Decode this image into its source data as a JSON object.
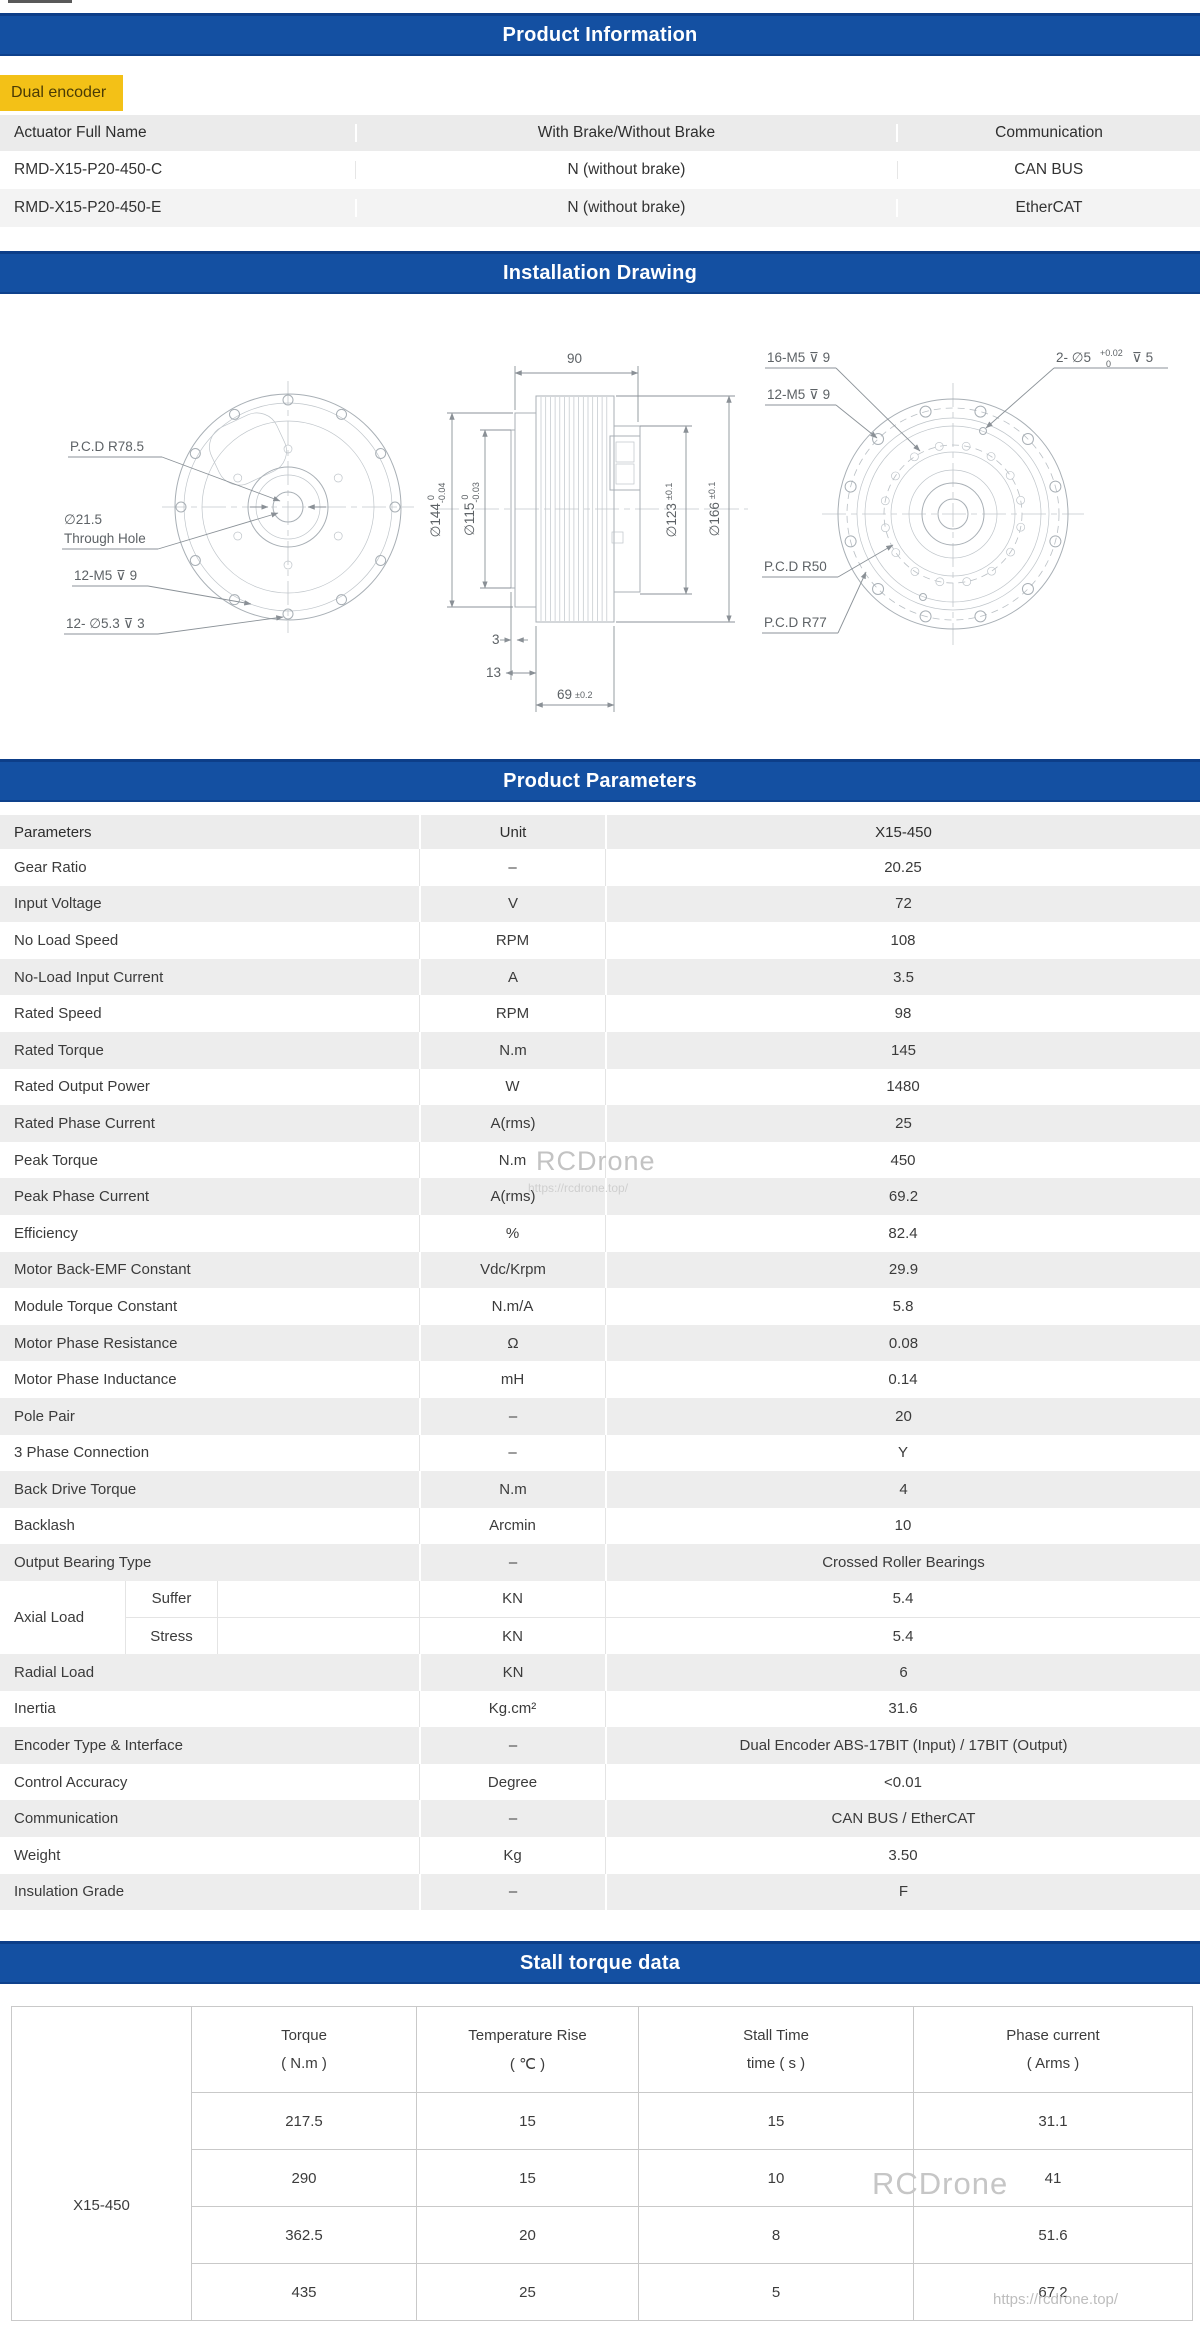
{
  "sections": {
    "product_information": "Product Information",
    "installation_drawing": "Installation Drawing",
    "product_parameters": "Product Parameters",
    "stall_torque": "Stall torque data"
  },
  "badge": {
    "label": "Dual encoder"
  },
  "product_info_table": {
    "headers": [
      "Actuator Full Name",
      "With Brake/Without Brake",
      "Communication"
    ],
    "rows": [
      [
        "RMD-X15-P20-450-C",
        "N (without brake)",
        "CAN BUS"
      ],
      [
        "RMD-X15-P20-450-E",
        "N (without brake)",
        "EtherCAT"
      ]
    ]
  },
  "installation_drawing": {
    "left": {
      "pcd": "P.C.D R78.5",
      "hole_dia": "∅21.5",
      "hole_label": "Through Hole",
      "bolts": "12-M5 ⊽ 9",
      "holes": "12- ∅5.3 ⊽ 3"
    },
    "middle": {
      "dim_width": "90",
      "d144": "∅144",
      "d144_tol_hi": "0",
      "d144_tol_lo": "-0.04",
      "d115": "∅115",
      "d115_tol_hi": "0",
      "d115_tol_lo": "-0.03",
      "d123": "∅123",
      "d123_tol": "±0.1",
      "d166": "∅166",
      "d166_tol": "±0.1",
      "dim_3": "3",
      "dim_13": "13",
      "dim_69": "69",
      "dim_69_tol": "±0.2"
    },
    "right": {
      "bolts16": "16-M5 ⊽ 9",
      "bolts12": "12-M5 ⊽ 9",
      "pins": "2- ∅5",
      "pins_tol_hi": "+0.02",
      "pins_tol_lo": "0",
      "pins_depth": "⊽ 5",
      "pcd50": "P.C.D R50",
      "pcd77": "P.C.D R77"
    }
  },
  "parameters_table": {
    "headers": [
      "Parameters",
      "Unit",
      "X15-450"
    ],
    "rows": [
      {
        "label": "Gear Ratio",
        "unit": "–",
        "value": "20.25"
      },
      {
        "label": "Input Voltage",
        "unit": "V",
        "value": "72"
      },
      {
        "label": "No Load Speed",
        "unit": "RPM",
        "value": "108"
      },
      {
        "label": "No-Load Input Current",
        "unit": "A",
        "value": "3.5"
      },
      {
        "label": "Rated Speed",
        "unit": "RPM",
        "value": "98"
      },
      {
        "label": "Rated Torque",
        "unit": "N.m",
        "value": "145"
      },
      {
        "label": "Rated Output Power",
        "unit": "W",
        "value": "1480"
      },
      {
        "label": "Rated Phase Current",
        "unit": "A(rms)",
        "value": "25"
      },
      {
        "label": "Peak Torque",
        "unit": "N.m",
        "value": "450"
      },
      {
        "label": "Peak Phase Current",
        "unit": "A(rms)",
        "value": "69.2"
      },
      {
        "label": "Efficiency",
        "unit": "%",
        "value": "82.4"
      },
      {
        "label": "Motor Back-EMF Constant",
        "unit": "Vdc/Krpm",
        "value": "29.9"
      },
      {
        "label": "Module Torque Constant",
        "unit": "N.m/A",
        "value": "5.8"
      },
      {
        "label": "Motor Phase Resistance",
        "unit": "Ω",
        "value": "0.08"
      },
      {
        "label": "Motor Phase Inductance",
        "unit": "mH",
        "value": "0.14"
      },
      {
        "label": "Pole Pair",
        "unit": "–",
        "value": "20"
      },
      {
        "label": "3 Phase Connection",
        "unit": "–",
        "value": "Y"
      },
      {
        "label": "Back Drive Torque",
        "unit": "N.m",
        "value": "4"
      },
      {
        "label": "Backlash",
        "unit": "Arcmin",
        "value": "10"
      },
      {
        "label": "Output Bearing Type",
        "unit": "–",
        "value": "Crossed Roller Bearings"
      },
      {
        "axial": true,
        "label": "Axial Load",
        "subrows": [
          {
            "name": "Suffer",
            "unit": "KN",
            "value": "5.4"
          },
          {
            "name": "Stress",
            "unit": "KN",
            "value": "5.4"
          }
        ]
      },
      {
        "label": "Radial Load",
        "unit": "KN",
        "value": "6"
      },
      {
        "label": "Inertia",
        "unit": "Kg.cm²",
        "value": "31.6"
      },
      {
        "label": "Encoder Type & Interface",
        "unit": "–",
        "value": "Dual Encoder ABS-17BIT (Input) / 17BIT (Output)"
      },
      {
        "label": "Control Accuracy",
        "unit": "Degree",
        "value": "<0.01"
      },
      {
        "label": "Communication",
        "unit": "–",
        "value": "CAN BUS / EtherCAT"
      },
      {
        "label": "Weight",
        "unit": "Kg",
        "value": "3.50"
      },
      {
        "label": "Insulation Grade",
        "unit": "–",
        "value": "F"
      }
    ]
  },
  "stall_table": {
    "model": "X15-450",
    "headers": [
      {
        "l1": "Torque",
        "l2": "( N.m )"
      },
      {
        "l1": "Temperature Rise",
        "l2": "( ℃ )"
      },
      {
        "l1": "Stall Time",
        "l2": "time ( s )"
      },
      {
        "l1": "Phase current",
        "l2": "( Arms )"
      }
    ],
    "rows": [
      [
        "217.5",
        "15",
        "15",
        "31.1"
      ],
      [
        "290",
        "15",
        "10",
        "41"
      ],
      [
        "362.5",
        "20",
        "8",
        "51.6"
      ],
      [
        "435",
        "25",
        "5",
        "67.2"
      ]
    ]
  },
  "watermarks": {
    "brand": "RCDrone",
    "url": "https://rcdrone.top/"
  },
  "colors": {
    "header_blue": "#1450A2",
    "badge_yellow": "#F3C117"
  }
}
